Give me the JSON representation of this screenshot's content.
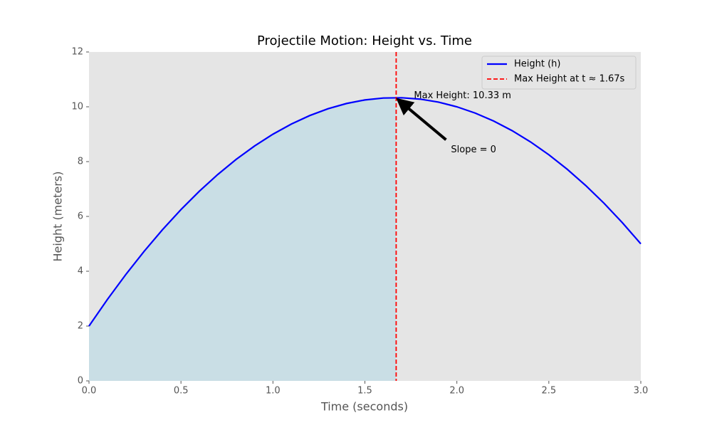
{
  "chart_data": {
    "type": "line",
    "title": "Projectile Motion: Height vs. Time",
    "x_label": "Time (seconds)",
    "y_label": "Height (meters)",
    "x": [
      0,
      0.1,
      0.2,
      0.3,
      0.4,
      0.5,
      0.6,
      0.7,
      0.8,
      0.9,
      1.0,
      1.1,
      1.2,
      1.3,
      1.4,
      1.5,
      1.6,
      1.7,
      1.8,
      1.9,
      2.0,
      2.1,
      2.2,
      2.3,
      2.4,
      2.5,
      2.6,
      2.7,
      2.8,
      2.9,
      3.0
    ],
    "series": [
      {
        "name": "Height (h)",
        "color": "#0000ff",
        "fill_color": "#add8e6",
        "values": [
          2,
          2.97,
          3.88,
          4.73,
          5.52,
          6.25,
          6.92,
          7.53,
          8.08,
          8.57,
          9,
          9.37,
          9.68,
          9.93,
          10.12,
          10.25,
          10.32,
          10.33,
          10.28,
          10.17,
          10,
          9.77,
          9.48,
          9.13,
          8.72,
          8.25,
          7.72,
          7.13,
          6.48,
          5.77,
          5
        ]
      }
    ],
    "vline": {
      "value": 1.67,
      "label": "Max Height at t ≈ 1.67s",
      "color": "#ff0000"
    },
    "annotations": [
      {
        "text": "Max Height: 10.33 m",
        "x": 1.67,
        "y": 10.33
      },
      {
        "text": "Slope = 0",
        "x": 1.67,
        "y": 10.33
      }
    ],
    "xlim": [
      0,
      3
    ],
    "ylim": [
      0,
      12
    ],
    "xticks": [
      {
        "value": 0,
        "label": "0.0"
      },
      0.5,
      {
        "value": 1,
        "label": "1.0"
      },
      1.5,
      {
        "value": 2,
        "label": "2.0"
      },
      2.5,
      {
        "value": 3,
        "label": "3.0"
      }
    ],
    "yticks": [
      0,
      2,
      4,
      6,
      8,
      10,
      12
    ],
    "grid": false,
    "legend": "upper right"
  }
}
